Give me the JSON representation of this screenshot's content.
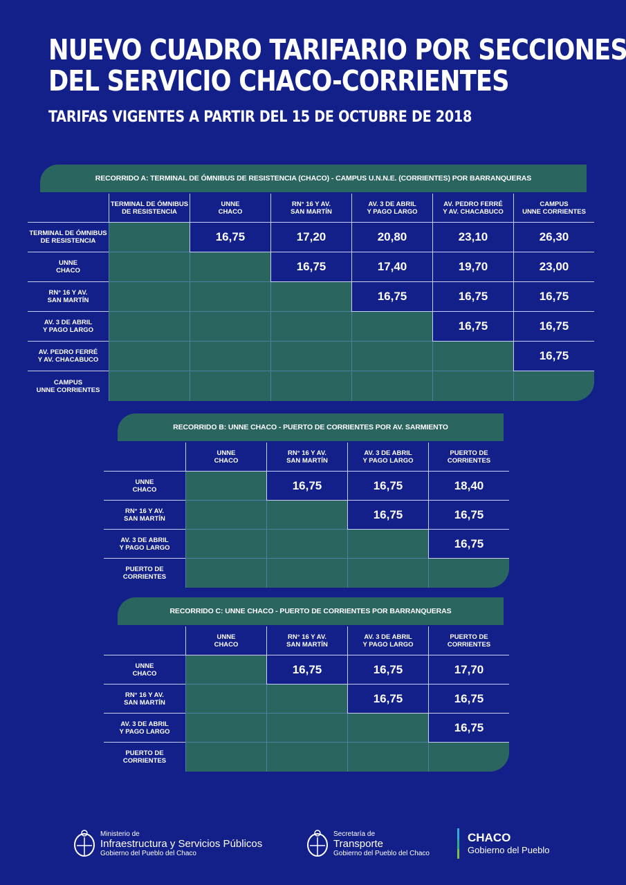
{
  "title": {
    "line1": "NUEVO CUADRO TARIFARIO POR SECCIONES",
    "line2": "DEL SERVICIO CHACO-CORRIENTES",
    "subtitle": "TARIFAS VIGENTES A PARTIR DEL 15 DE OCTUBRE DE 2018"
  },
  "colors": {
    "background": "#13208a",
    "green": "#2b6560",
    "line": "#c8d0ff"
  },
  "tables": [
    {
      "banner": "RECORRIDO A: TERMINAL DE ÓMNIBUS DE RESISTENCIA (CHACO) - CAMPUS U.N.N.E. (CORRIENTES) POR BARRANQUERAS",
      "columns": [
        "TERMINAL DE ÓMNIBUS\nDE RESISTENCIA",
        "UNNE\nCHACO",
        "RN° 16 Y AV.\nSAN MARTÍN",
        "AV. 3 DE ABRIL\nY PAGO LARGO",
        "AV. PEDRO FERRÉ\nY AV. CHACABUCO",
        "CAMPUS\nUNNE CORRIENTES"
      ],
      "rows": [
        {
          "label": "TERMINAL DE ÓMNIBUS\nDE RESISTENCIA",
          "values": [
            "",
            "16,75",
            "17,20",
            "20,80",
            "23,10",
            "26,30"
          ]
        },
        {
          "label": "UNNE\nCHACO",
          "values": [
            "",
            "",
            "16,75",
            "17,40",
            "19,70",
            "23,00"
          ]
        },
        {
          "label": "RN° 16 Y AV.\nSAN MARTÍN",
          "values": [
            "",
            "",
            "",
            "16,75",
            "16,75",
            "16,75"
          ]
        },
        {
          "label": "AV. 3 DE ABRIL\nY PAGO LARGO",
          "values": [
            "",
            "",
            "",
            "",
            "16,75",
            "16,75"
          ]
        },
        {
          "label": "AV. PEDRO FERRÉ\nY AV. CHACABUCO",
          "values": [
            "",
            "",
            "",
            "",
            "",
            "16,75"
          ]
        },
        {
          "label": "CAMPUS\nUNNE CORRIENTES",
          "values": [
            "",
            "",
            "",
            "",
            "",
            ""
          ]
        }
      ]
    },
    {
      "banner": "RECORRIDO B: UNNE CHACO - PUERTO DE CORRIENTES POR AV. SARMIENTO",
      "columns": [
        "UNNE\nCHACO",
        "RN° 16 Y AV.\nSAN MARTÍN",
        "AV. 3 DE ABRIL\nY PAGO LARGO",
        "PUERTO DE\nCORRIENTES"
      ],
      "rows": [
        {
          "label": "UNNE\nCHACO",
          "values": [
            "",
            "16,75",
            "16,75",
            "18,40"
          ]
        },
        {
          "label": "RN° 16 Y AV.\nSAN MARTÍN",
          "values": [
            "",
            "",
            "16,75",
            "16,75"
          ]
        },
        {
          "label": "AV. 3 DE ABRIL\nY PAGO LARGO",
          "values": [
            "",
            "",
            "",
            "16,75"
          ]
        },
        {
          "label": "PUERTO DE\nCORRIENTES",
          "values": [
            "",
            "",
            "",
            ""
          ]
        }
      ]
    },
    {
      "banner": "RECORRIDO C: UNNE CHACO - PUERTO DE CORRIENTES POR BARRANQUERAS",
      "columns": [
        "UNNE\nCHACO",
        "RN° 16 Y AV.\nSAN MARTÍN",
        "AV. 3 DE ABRIL\nY PAGO LARGO",
        "PUERTO DE\nCORRIENTES"
      ],
      "rows": [
        {
          "label": "UNNE\nCHACO",
          "values": [
            "",
            "16,75",
            "16,75",
            "17,70"
          ]
        },
        {
          "label": "RN° 16 Y AV.\nSAN MARTÍN",
          "values": [
            "",
            "",
            "16,75",
            "16,75"
          ]
        },
        {
          "label": "AV. 3 DE ABRIL\nY PAGO LARGO",
          "values": [
            "",
            "",
            "",
            "16,75"
          ]
        },
        {
          "label": "PUERTO DE\nCORRIENTES",
          "values": [
            "",
            "",
            "",
            ""
          ]
        }
      ]
    }
  ],
  "footer": {
    "ministry": {
      "small1": "Ministerio de",
      "big": "Infraestructura y Servicios Públicos",
      "small2": "Gobierno del Pueblo del Chaco",
      "icon": "provincial-emblem-icon"
    },
    "transport": {
      "small1": "Secretaría de",
      "big": "Transporte",
      "small2": "Gobierno del Pueblo del Chaco",
      "icon": "provincial-emblem-icon"
    },
    "chaco": {
      "big": "CHACO",
      "small": "Gobierno del Pueblo"
    }
  }
}
